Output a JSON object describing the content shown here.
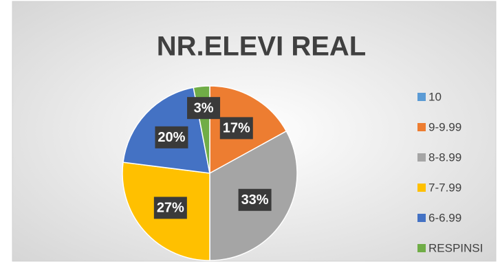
{
  "chart_data": {
    "type": "pie",
    "title": "NR.ELEVI REAL",
    "categories": [
      "10",
      "9-9.99",
      "8-8.99",
      "7-7.99",
      "6-6.99",
      "RESPINSI"
    ],
    "values": [
      0,
      17,
      33,
      27,
      20,
      3
    ],
    "value_labels": [
      null,
      "17%",
      "33%",
      "27%",
      "20%",
      "3%"
    ],
    "colors": [
      "#5b9bd5",
      "#ed7d31",
      "#a5a5a5",
      "#ffc000",
      "#4472c4",
      "#70ad47"
    ],
    "legend": "right"
  }
}
